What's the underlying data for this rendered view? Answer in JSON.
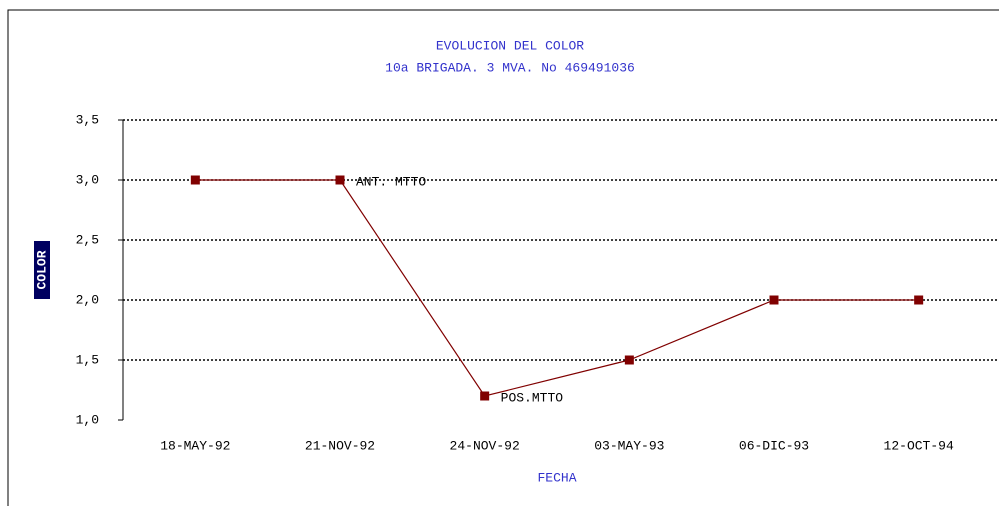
{
  "chart_data": {
    "type": "line",
    "title": "EVOLUCION DEL COLOR",
    "subtitle": "10a BRIGADA. 3 MVA. No 469491036",
    "x_label": "FECHA",
    "y_label": "COLOR",
    "categories": [
      "18-MAY-92",
      "21-NOV-92",
      "24-NOV-92",
      "03-MAY-93",
      "06-DIC-93",
      "12-OCT-94"
    ],
    "series": [
      {
        "name": "COLOR",
        "color": "#800000",
        "values": [
          3.0,
          3.0,
          1.2,
          1.5,
          2.0,
          2.0
        ]
      }
    ],
    "ylim": [
      1.0,
      3.5
    ],
    "yticks": [
      {
        "value": 1.0,
        "label": "1,0"
      },
      {
        "value": 1.5,
        "label": "1,5"
      },
      {
        "value": 2.0,
        "label": "2,0"
      },
      {
        "value": 2.5,
        "label": "2,5"
      },
      {
        "value": 3.0,
        "label": "3,0"
      },
      {
        "value": 3.5,
        "label": "3,5"
      }
    ],
    "grid": true,
    "annotations": [
      {
        "text": "ANT. MTTO",
        "index": 1
      },
      {
        "text": "POS.MTTO",
        "index": 2
      }
    ]
  }
}
